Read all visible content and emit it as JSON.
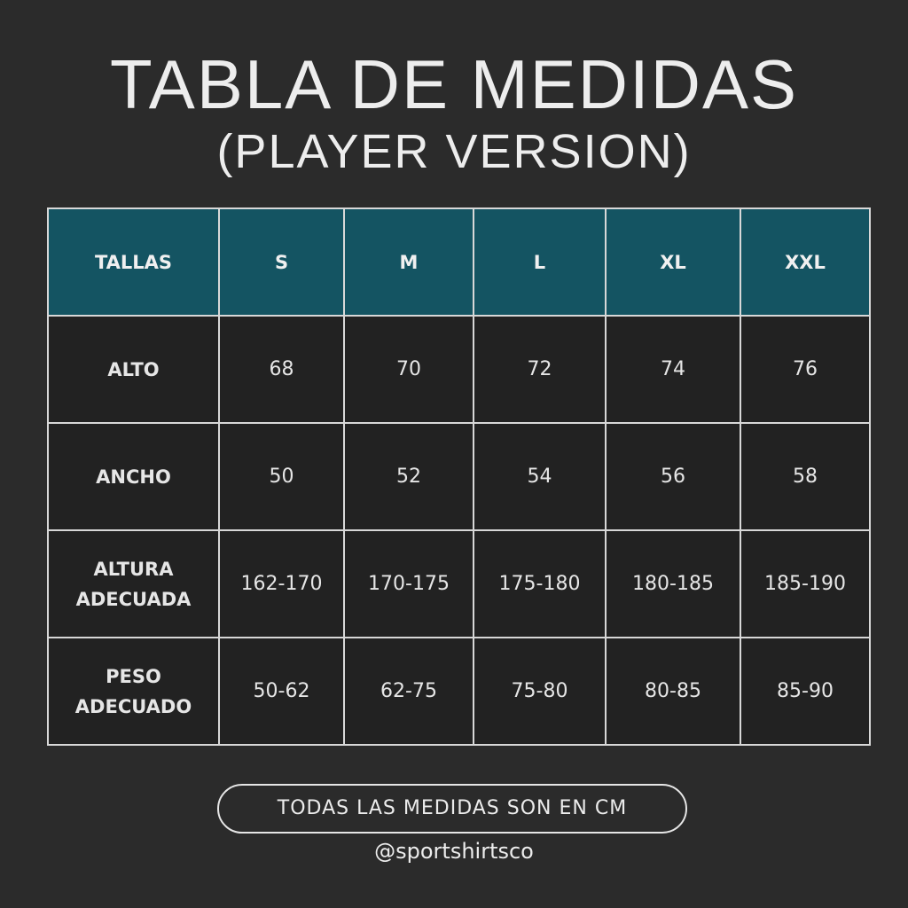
{
  "title": "TABLA DE MEDIDAS",
  "subtitle": "(PLAYER VERSION)",
  "table": {
    "header": [
      "TALLAS",
      "S",
      "M",
      "L",
      "XL",
      "XXL"
    ],
    "rows": [
      {
        "label": "ALTO",
        "values": [
          "68",
          "70",
          "72",
          "74",
          "76"
        ]
      },
      {
        "label": "ANCHO",
        "values": [
          "50",
          "52",
          "54",
          "56",
          "58"
        ]
      },
      {
        "label": "ALTURA ADECUADA",
        "values": [
          "162-170",
          "170-175",
          "175-180",
          "180-185",
          "185-190"
        ]
      },
      {
        "label": "PESO ADECUADO",
        "values": [
          "50-62",
          "62-75",
          "75-80",
          "80-85",
          "85-90"
        ]
      }
    ]
  },
  "note": "TODAS LAS MEDIDAS SON EN CM",
  "handle": "@sportshirtsco",
  "colors": {
    "background": "#2b2b2b",
    "header": "#145462",
    "cell": "#222222"
  }
}
